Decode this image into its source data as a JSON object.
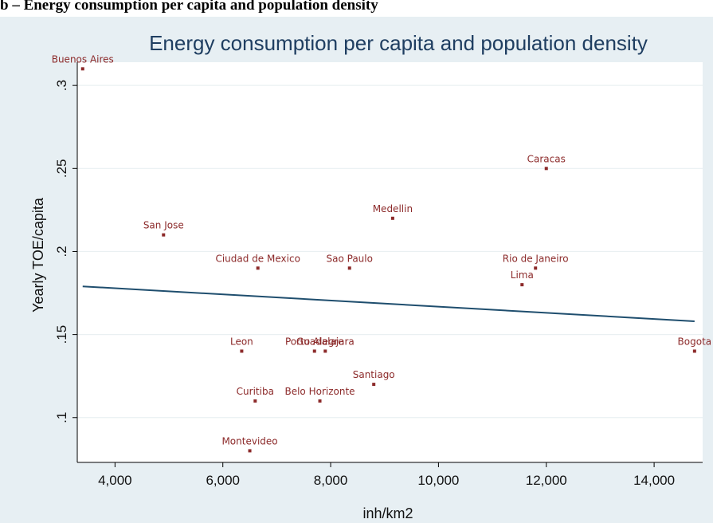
{
  "caption": "b – Energy consumption per capita and population density",
  "chart_data": {
    "type": "scatter",
    "title": "Energy consumption per capita and population density",
    "xlabel": "inh/km2",
    "ylabel": "Yearly TOE/capita",
    "xlim": [
      3300,
      14900
    ],
    "ylim": [
      0.073,
      0.314
    ],
    "x_ticks": [
      4000,
      6000,
      8000,
      10000,
      12000,
      14000
    ],
    "x_tick_labels": [
      "4,000",
      "6,000",
      "8,000",
      "10,000",
      "12,000",
      "14,000"
    ],
    "y_ticks": [
      0.1,
      0.15,
      0.2,
      0.25,
      0.3
    ],
    "y_tick_labels": [
      ".1",
      ".15",
      ".2",
      ".25",
      ".3"
    ],
    "grid": true,
    "points": [
      {
        "label": "Buenos Aires",
        "x": 3400,
        "y": 0.31
      },
      {
        "label": "San Jose",
        "x": 4900,
        "y": 0.21
      },
      {
        "label": "Ciudad de Mexico",
        "x": 6650,
        "y": 0.19
      },
      {
        "label": "Sao Paulo",
        "x": 8350,
        "y": 0.19
      },
      {
        "label": "Medellin",
        "x": 9150,
        "y": 0.22
      },
      {
        "label": "Caracas",
        "x": 12000,
        "y": 0.25
      },
      {
        "label": "Rio de Janeiro",
        "x": 11800,
        "y": 0.19
      },
      {
        "label": "Lima",
        "x": 11550,
        "y": 0.18
      },
      {
        "label": "Leon",
        "x": 6350,
        "y": 0.14
      },
      {
        "label": "Porto Alegre",
        "x": 7700,
        "y": 0.14
      },
      {
        "label": "Guadalajara",
        "x": 7900,
        "y": 0.14
      },
      {
        "label": "Santiago",
        "x": 8800,
        "y": 0.12
      },
      {
        "label": "Curitiba",
        "x": 6600,
        "y": 0.11
      },
      {
        "label": "Belo Horizonte",
        "x": 7800,
        "y": 0.11
      },
      {
        "label": "Montevideo",
        "x": 6500,
        "y": 0.08
      },
      {
        "label": "Bogota",
        "x": 14750,
        "y": 0.14
      }
    ],
    "fit_line": {
      "x": [
        3400,
        14750
      ],
      "y": [
        0.179,
        0.158
      ]
    },
    "colors": {
      "points": "#8c2a2a",
      "fit_line": "#1f4e6e",
      "background": "#e7eff3",
      "title": "#1f3e61"
    }
  }
}
